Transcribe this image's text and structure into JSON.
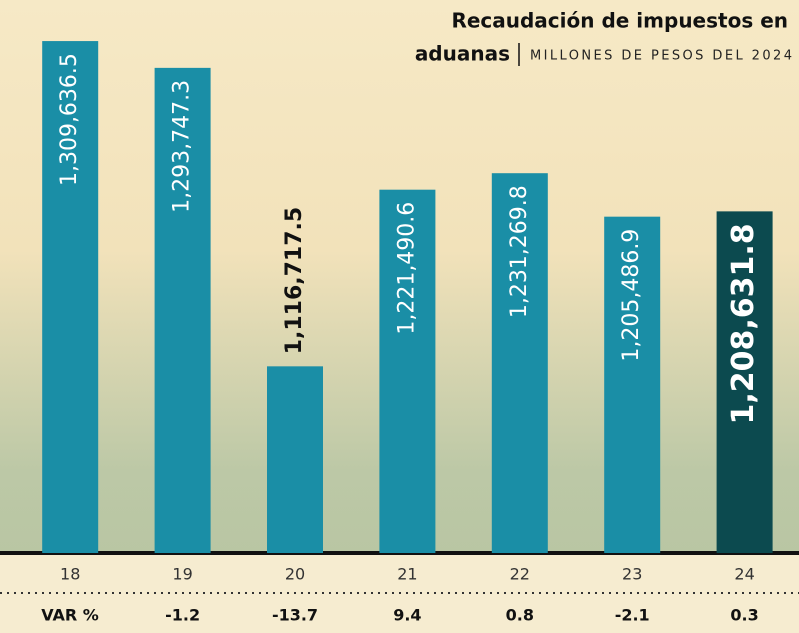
{
  "chart_data": {
    "type": "bar",
    "title": [
      "Recaudación de impuestos en",
      "aduanas"
    ],
    "subtitle": "MILLONES DE PESOS DEL 2024",
    "categories": [
      "18",
      "19",
      "20",
      "21",
      "22",
      "23",
      "24"
    ],
    "values": [
      1309636.5,
      1293747.3,
      1116717.5,
      1221490.6,
      1231269.8,
      1205486.9,
      1208631.8
    ],
    "value_labels": [
      "1,309,636.5",
      "1,293,747.3",
      "1,116,717.5",
      "1,221,490.6",
      "1,231,269.8",
      "1,205,486.9",
      "1,208,631.8"
    ],
    "colors": [
      "#1a8ea6",
      "#1a8ea6",
      "#1a8ea6",
      "#1a8ea6",
      "#1a8ea6",
      "#1a8ea6",
      "#0c4a4f"
    ],
    "ylim": [
      1006000,
      1334000
    ],
    "var_label": "VAR %",
    "var_values": [
      null,
      -1.2,
      -13.7,
      9.4,
      0.8,
      -2.1,
      0.3
    ]
  }
}
